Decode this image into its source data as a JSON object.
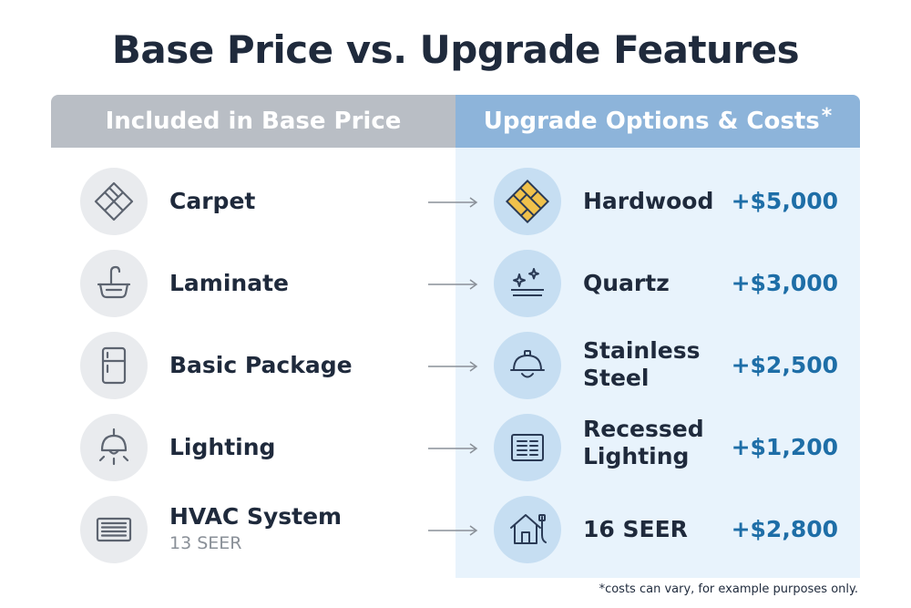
{
  "title": "Base Price vs. Upgrade Features",
  "headers": {
    "included": "Included in Base Price",
    "upgrades": "Upgrade Options & Costs",
    "upgrades_mark": "*"
  },
  "rows": [
    {
      "included": "Carpet",
      "included_sub": "",
      "included_icon": "flooring-tiles-icon",
      "upgrade": "Hardwood",
      "upgrade_icon": "hardwood-floor-icon",
      "price": "+$5,000"
    },
    {
      "included": "Laminate",
      "included_sub": "",
      "included_icon": "sink-faucet-icon",
      "upgrade": "Quartz",
      "upgrade_icon": "sparkle-countertop-icon",
      "price": "+$3,000"
    },
    {
      "included": "Basic Package",
      "included_sub": "",
      "included_icon": "refrigerator-icon",
      "upgrade": "Stainless Steel",
      "upgrade_icon": "pendant-lamp-icon",
      "price": "+$2,500"
    },
    {
      "included": "Lighting",
      "included_sub": "",
      "included_icon": "ceiling-light-icon",
      "upgrade": "Recessed Lighting",
      "upgrade_icon": "recessed-panel-icon",
      "price": "+$1,200"
    },
    {
      "included": "HVAC System",
      "included_sub": "13 SEER",
      "included_icon": "vent-grille-icon",
      "upgrade": "16 SEER",
      "upgrade_icon": "house-hvac-icon",
      "price": "+$2,800"
    }
  ],
  "footnote": "*costs can vary, for example purposes only.",
  "colors": {
    "header_left": "#b9bec5",
    "header_right": "#8db4da",
    "panel_right": "#e8f3fc",
    "price": "#1e6ea7",
    "text": "#1f2a3c"
  }
}
